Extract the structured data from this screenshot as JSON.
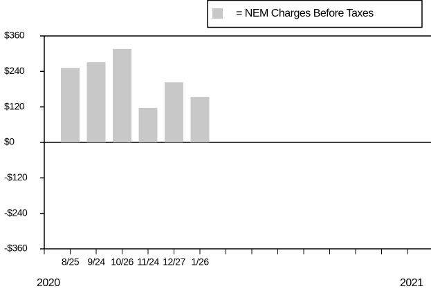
{
  "chart_data": {
    "type": "bar",
    "legend": "= NEM Charges Before Taxes",
    "categories": [
      "8/25",
      "9/24",
      "10/26",
      "11/24",
      "12/27",
      "1/26",
      null,
      null,
      null,
      null,
      null,
      null,
      null,
      null
    ],
    "values": [
      252,
      271,
      316,
      117,
      203,
      154,
      null,
      null,
      null,
      null,
      null,
      null,
      null,
      null
    ],
    "color": "#c8c8c8",
    "ylim": [
      -360,
      360
    ],
    "yticks": [
      {
        "value": -360,
        "label": "-$360"
      },
      {
        "value": -240,
        "label": "-$240"
      },
      {
        "value": -120,
        "label": "-$120"
      },
      {
        "value": 0,
        "label": "$0"
      },
      {
        "value": 120,
        "label": "$120"
      },
      {
        "value": 240,
        "label": "$240"
      },
      {
        "value": 360,
        "label": "$360"
      }
    ],
    "years": [
      "2020",
      "2021"
    ]
  }
}
